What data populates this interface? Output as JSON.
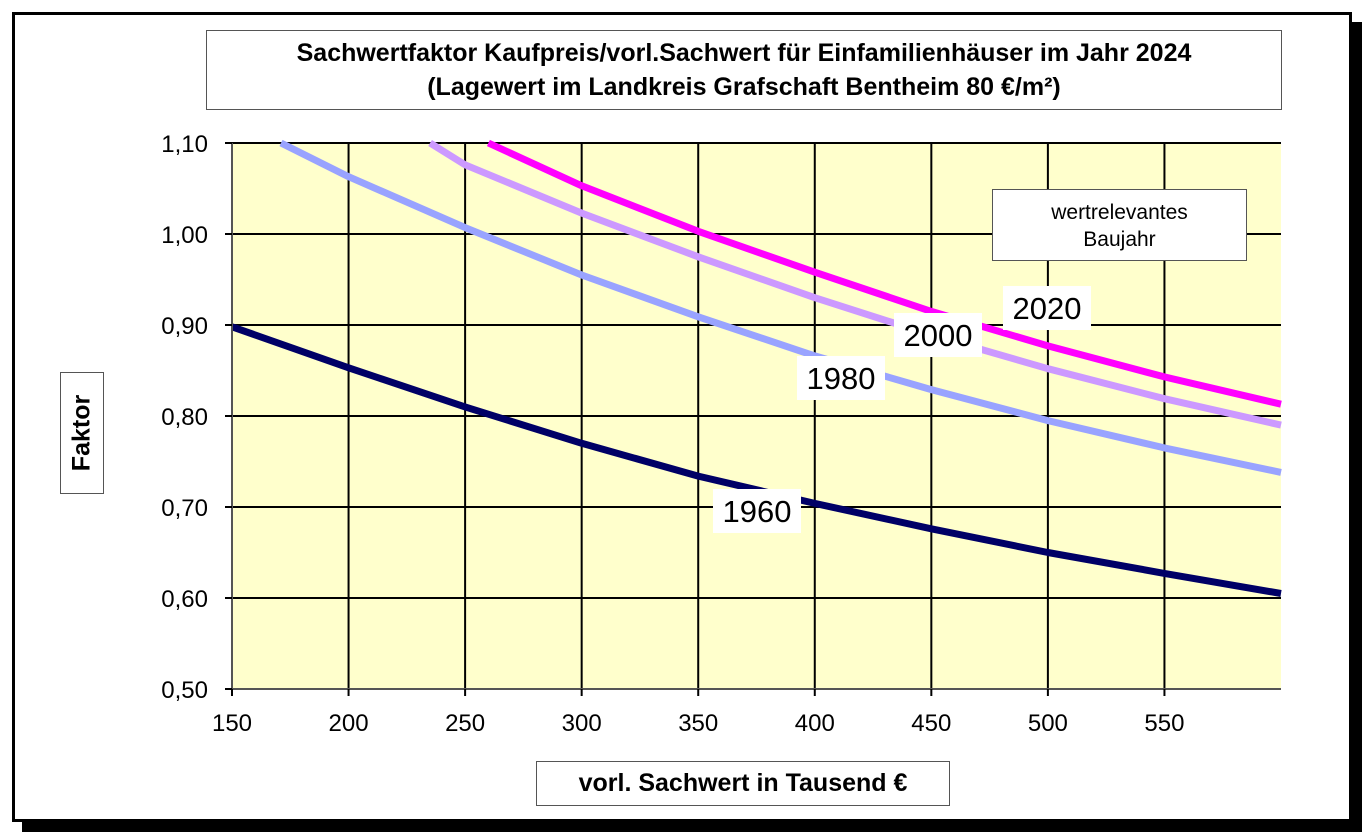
{
  "chart_data": {
    "type": "line",
    "title": "Sachwertfaktor Kaufpreis/vorl.Sachwert für Einfamilienhäuser im Jahr 2024",
    "subtitle": "(Lagewert im Landkreis Grafschaft Bentheim 80 €/m²)",
    "xlabel": "vorl. Sachwert in Tausend €",
    "ylabel": "Faktor",
    "legend_title": [
      "wertrelevantes",
      "Baujahr"
    ],
    "xlim": [
      150,
      600
    ],
    "ylim": [
      0.5,
      1.1
    ],
    "x_ticks": [
      150,
      200,
      250,
      300,
      350,
      400,
      450,
      500,
      550
    ],
    "x_tick_labels": [
      "150",
      "200",
      "250",
      "300",
      "350",
      "400",
      "450",
      "500",
      "550"
    ],
    "y_ticks": [
      0.5,
      0.6,
      0.7,
      0.8,
      0.9,
      1.0,
      1.1
    ],
    "y_tick_labels": [
      "0,50",
      "0,60",
      "0,70",
      "0,80",
      "0,90",
      "1,00",
      "1,10"
    ],
    "grid": true,
    "plot_background": "#ffffcc",
    "x": [
      150,
      200,
      250,
      300,
      350,
      400,
      450,
      500,
      550,
      600
    ],
    "series": [
      {
        "name": "1960",
        "color": "#000066",
        "values": [
          0.898,
          0.853,
          0.81,
          0.77,
          0.734,
          0.704,
          0.676,
          0.65,
          0.627,
          0.605
        ]
      },
      {
        "name": "1980",
        "color": "#99a3ff",
        "values": [
          null,
          1.063,
          1.007,
          0.955,
          0.909,
          0.866,
          0.829,
          0.795,
          0.765,
          0.738
        ]
      },
      {
        "name": "2000",
        "color": "#cc99ff",
        "values": [
          null,
          null,
          1.076,
          1.023,
          0.975,
          0.93,
          0.889,
          0.852,
          0.819,
          0.79
        ]
      },
      {
        "name": "2020",
        "color": "#ff00ff",
        "values": [
          null,
          null,
          null,
          1.053,
          1.003,
          0.958,
          0.915,
          0.877,
          0.843,
          0.813
        ]
      }
    ],
    "series_start_points": [
      [
        150,
        0.898
      ],
      [
        171,
        1.1
      ],
      [
        235,
        1.1
      ],
      [
        260,
        1.1
      ]
    ]
  }
}
